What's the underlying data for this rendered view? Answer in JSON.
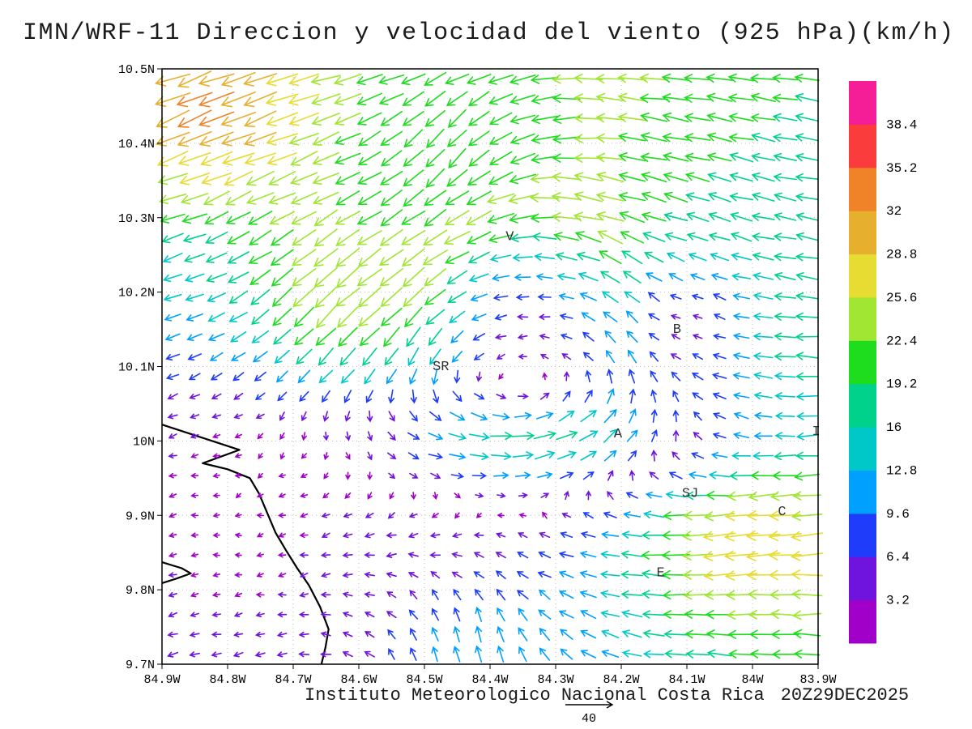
{
  "chart_data": {
    "type": "quiver",
    "title": "IMN/WRF-11 Direccion y velocidad del viento (925 hPa)(km/h)",
    "institution": "Instituto Meteorologico Nacional Costa Rica",
    "valid_time": "20Z29DEC2025",
    "units": "km/h",
    "pressure_level": "925 hPa",
    "model_name": "IMN/WRF-11",
    "lon_domain": [
      84.9,
      83.9
    ],
    "lat_domain": [
      9.7,
      10.5
    ],
    "lon_ticks": {
      "values": [
        84.9,
        84.8,
        84.7,
        84.6,
        84.5,
        84.4,
        84.3,
        84.2,
        84.1,
        84.0,
        83.9
      ],
      "labels": [
        "84.9W",
        "84.8W",
        "84.7W",
        "84.6W",
        "84.5W",
        "84.4W",
        "84.3W",
        "84.2W",
        "84.1W",
        "84W",
        "83.9W"
      ]
    },
    "lat_ticks": {
      "values": [
        9.7,
        9.8,
        9.9,
        10.0,
        10.1,
        10.2,
        10.3,
        10.4,
        10.5
      ],
      "labels": [
        "9.7N",
        "9.8N",
        "9.9N",
        "10N",
        "10.1N",
        "10.2N",
        "10.3N",
        "10.4N",
        "10.5N"
      ]
    },
    "colorbar": {
      "levels": [
        3.2,
        6.4,
        9.6,
        12.8,
        16,
        19.2,
        22.4,
        25.6,
        28.8,
        32,
        35.2,
        38.4
      ],
      "labels": [
        "3.2",
        "6.4",
        "9.6",
        "12.8",
        "16",
        "19.2",
        "22.4",
        "25.6",
        "28.8",
        "32",
        "35.2",
        "38.4"
      ],
      "colors": [
        "#a000c8",
        "#6e14dc",
        "#1e3cfa",
        "#00a0ff",
        "#00c8c8",
        "#00d28c",
        "#1edc1e",
        "#a0e632",
        "#e6dc32",
        "#e6af2d",
        "#f08228",
        "#fa3c3c",
        "#f51e96"
      ]
    },
    "reference_vector": {
      "label": "40",
      "value": 40
    },
    "stations": [
      {
        "label": "V",
        "lon": 84.37,
        "lat": 10.27
      },
      {
        "label": "SR",
        "lon": 84.475,
        "lat": 10.095
      },
      {
        "label": "B",
        "lon": 84.115,
        "lat": 10.145
      },
      {
        "label": "A",
        "lon": 84.205,
        "lat": 10.005
      },
      {
        "label": "SJ",
        "lon": 84.095,
        "lat": 9.925
      },
      {
        "label": "C",
        "lon": 83.955,
        "lat": 9.9
      },
      {
        "label": "E",
        "lon": 84.14,
        "lat": 9.818
      },
      {
        "label": "I",
        "lon": 83.903,
        "lat": 10.008
      }
    ],
    "coastline": [
      [
        [
          84.9,
          10.022
        ],
        [
          84.848,
          10.007
        ],
        [
          84.782,
          9.988
        ],
        [
          84.838,
          9.97
        ],
        [
          84.8,
          9.962
        ],
        [
          84.766,
          9.95
        ],
        [
          84.752,
          9.929
        ],
        [
          84.74,
          9.904
        ],
        [
          84.727,
          9.877
        ],
        [
          84.711,
          9.853
        ],
        [
          84.694,
          9.829
        ],
        [
          84.676,
          9.806
        ],
        [
          84.659,
          9.777
        ],
        [
          84.646,
          9.747
        ],
        [
          84.651,
          9.722
        ],
        [
          84.657,
          9.7
        ]
      ],
      [
        [
          84.9,
          9.837
        ],
        [
          84.87,
          9.829
        ],
        [
          84.856,
          9.822
        ],
        [
          84.878,
          9.815
        ],
        [
          84.9,
          9.809
        ]
      ]
    ],
    "grid": {
      "cols": 30,
      "rows": 30
    },
    "wind_model": {
      "base": [
        -13.5,
        0
      ],
      "features": [
        {
          "lon": 84.85,
          "lat": 10.44,
          "sx": 0.14,
          "sy": 0.1,
          "u": -13,
          "v": -9
        },
        {
          "lon": 84.3,
          "lat": 10.55,
          "sx": 0.5,
          "sy": 0.13,
          "u": -5,
          "v": 0
        },
        {
          "lon": 84.66,
          "lat": 10.17,
          "sx": 0.1,
          "sy": 0.09,
          "u": -7,
          "v": -13
        },
        {
          "lon": 84.45,
          "lat": 10.41,
          "sx": 0.1,
          "sy": 0.08,
          "u": 9,
          "v": -11
        },
        {
          "lon": 83.98,
          "lat": 9.8,
          "sx": 0.2,
          "sy": 0.12,
          "u": -11,
          "v": -1
        },
        {
          "lon": 83.93,
          "lat": 10.02,
          "sx": 0.12,
          "sy": 0.16,
          "u": -6,
          "v": -5
        },
        {
          "lon": 84.44,
          "lat": 9.72,
          "sx": 0.13,
          "sy": 0.08,
          "u": 6,
          "v": 13
        },
        {
          "lon": 84.05,
          "lat": 9.9,
          "sx": 0.1,
          "sy": 0.07,
          "u": -8,
          "v": -3
        },
        {
          "lon": 84.35,
          "lat": 10.0,
          "sx": 0.28,
          "sy": 0.06,
          "u": 20,
          "v": 3
        }
      ],
      "vortex": {
        "lon": 84.34,
        "lat": 10.16,
        "vmax": 13,
        "r0": 0.16,
        "eye": 0.07
      },
      "calm_zones": [
        {
          "lon": 84.8,
          "lat": 9.88,
          "sx": 0.17,
          "sy": 0.18,
          "a": 0.87
        },
        {
          "lon": 84.1,
          "lat": 10.16,
          "sx": 0.07,
          "sy": 0.06,
          "a": 0.75
        }
      ]
    }
  }
}
